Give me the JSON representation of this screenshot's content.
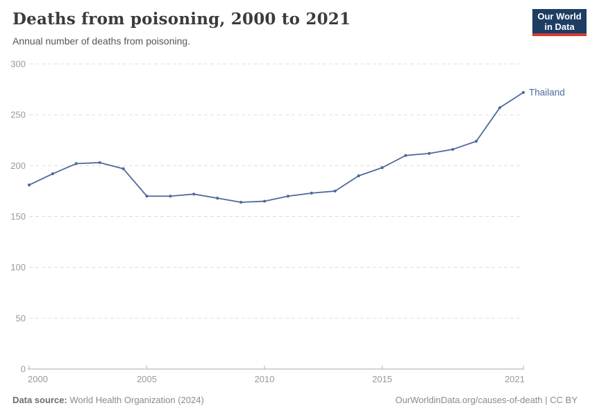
{
  "header": {
    "title": "Deaths from poisoning, 2000 to 2021",
    "subtitle": "Annual number of deaths from poisoning.",
    "logo": {
      "line1": "Our World",
      "line2": "in Data"
    }
  },
  "colors": {
    "title": "#3b3b3b",
    "subtitle": "#565656",
    "line": "#4c6a9c",
    "grid": "#dddddd",
    "axis": "#a8a8a8",
    "tick": "#b3b3b3",
    "tick_label": "#999999",
    "logo_bg": "#1d3d63",
    "logo_bar": "#d73c34",
    "footer_text": "#8a8a8a"
  },
  "chart_data": {
    "type": "line",
    "title": "Deaths from poisoning, 2000 to 2021",
    "subtitle": "Annual number of deaths from poisoning.",
    "xlabel": "",
    "ylabel": "",
    "xlim": [
      2000,
      2021
    ],
    "ylim": [
      0,
      300
    ],
    "x_ticks": [
      2000,
      2005,
      2010,
      2015,
      2021
    ],
    "y_ticks": [
      0,
      50,
      100,
      150,
      200,
      250,
      300
    ],
    "grid": "horizontal-dashed",
    "legend_position": "end-of-line",
    "series": [
      {
        "name": "Thailand",
        "color": "#4c6a9c",
        "x": [
          2000,
          2001,
          2002,
          2003,
          2004,
          2005,
          2006,
          2007,
          2008,
          2009,
          2010,
          2011,
          2012,
          2013,
          2014,
          2015,
          2016,
          2017,
          2018,
          2019,
          2020,
          2021
        ],
        "values": [
          181,
          192,
          202,
          203,
          197,
          170,
          170,
          172,
          168,
          164,
          165,
          170,
          173,
          175,
          190,
          198,
          210,
          212,
          216,
          224,
          257,
          272
        ]
      }
    ]
  },
  "footer": {
    "source_label": "Data source:",
    "source_text": "World Health Organization (2024)",
    "credit": "OurWorldinData.org/causes-of-death | CC BY"
  }
}
